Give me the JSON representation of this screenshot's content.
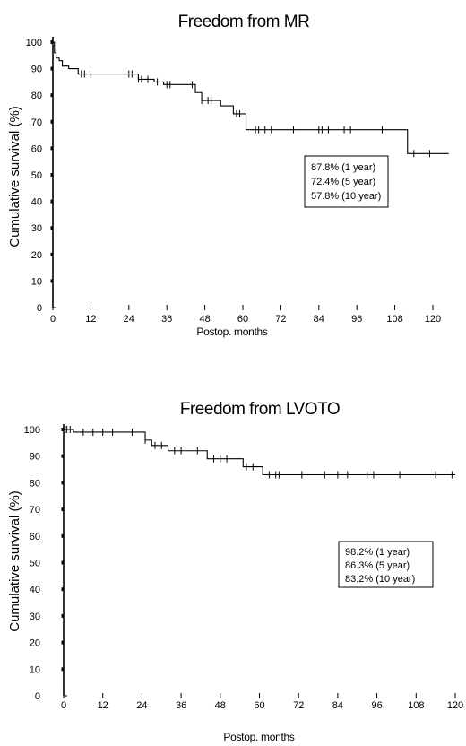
{
  "chart_data": [
    {
      "type": "line",
      "title": "Freedom from MR",
      "xlabel": "Postop. months",
      "ylabel": "Cumulative survival (%)",
      "xlim": [
        0,
        120
      ],
      "ylim": [
        0,
        100
      ],
      "xticks": [
        "0",
        "12",
        "24",
        "36",
        "48",
        "60",
        "72",
        "84",
        "96",
        "108",
        "120"
      ],
      "yticks": [
        "0",
        "10",
        "20",
        "30",
        "40",
        "50",
        "60",
        "70",
        "80",
        "90",
        "100"
      ],
      "grid": false,
      "series": [
        {
          "step_x": [
            0,
            0.5,
            1,
            2,
            3,
            5,
            8,
            23,
            27,
            32,
            35,
            45,
            47,
            53,
            57,
            61,
            112,
            125
          ],
          "step_y": [
            100,
            96,
            94,
            93,
            91,
            90,
            88,
            88,
            86,
            85,
            84,
            81,
            78,
            76,
            73,
            67,
            58,
            58
          ],
          "censored_x": [
            9,
            10,
            12,
            24,
            25,
            27,
            28,
            30,
            33,
            36,
            37,
            44,
            47,
            49,
            50,
            58,
            59,
            64,
            65,
            67,
            69,
            76,
            84,
            85,
            87,
            92,
            94,
            104,
            114,
            119
          ]
        }
      ],
      "annotations": [
        "87.8% (1 year)",
        "72.4% (5 year)",
        "57.8% (10 year)"
      ]
    },
    {
      "type": "line",
      "title": "Freedom from LVOTO",
      "xlabel": "Postop. months",
      "ylabel": "Cumulative survival (%)",
      "xlim": [
        0,
        120
      ],
      "ylim": [
        0,
        100
      ],
      "xticks": [
        "0",
        "12",
        "24",
        "36",
        "48",
        "60",
        "72",
        "84",
        "96",
        "108",
        "120"
      ],
      "yticks": [
        "0",
        "10",
        "20",
        "30",
        "40",
        "50",
        "60",
        "70",
        "80",
        "90",
        "100"
      ],
      "grid": false,
      "series": [
        {
          "step_x": [
            0,
            3,
            25,
            27,
            32,
            44,
            55,
            61,
            120
          ],
          "step_y": [
            100,
            99,
            96,
            94,
            92,
            89,
            86,
            83,
            83
          ],
          "censored_x": [
            0.5,
            1,
            2,
            6,
            9,
            12,
            15,
            21,
            25,
            28,
            30,
            34,
            36,
            41,
            46,
            48,
            50,
            56,
            58,
            63,
            65,
            66,
            73,
            80,
            84,
            87,
            93,
            95,
            103,
            114,
            119
          ]
        }
      ],
      "annotations": [
        "98.2% (1 year)",
        "86.3% (5 year)",
        "83.2% (10 year)"
      ]
    }
  ]
}
